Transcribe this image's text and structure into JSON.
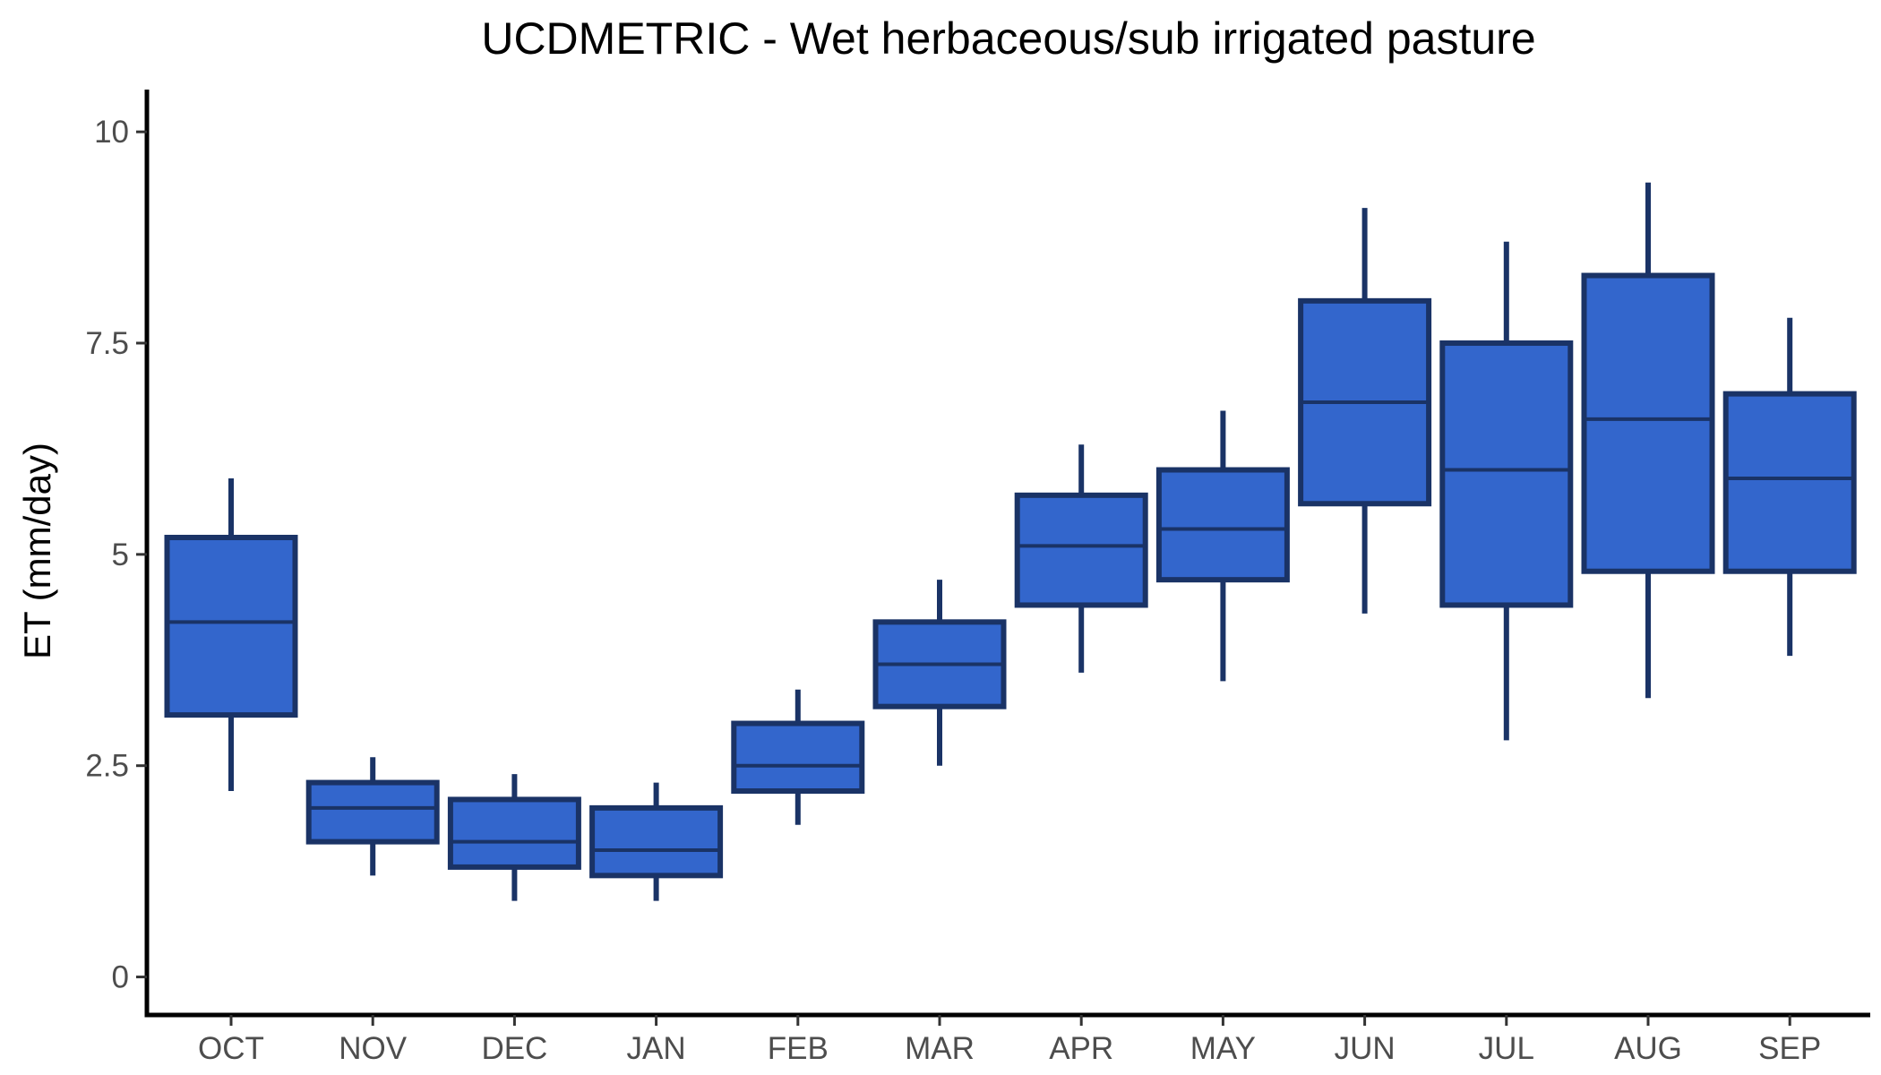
{
  "chart_data": {
    "type": "box",
    "title": "UCDMETRIC - Wet herbaceous/sub irrigated pasture",
    "xlabel": "",
    "ylabel": "ET (mm/day)",
    "ylim": [
      -0.45,
      10.5
    ],
    "y_ticks": [
      {
        "value": 0,
        "label": "0"
      },
      {
        "value": 2.5,
        "label": "2.5"
      },
      {
        "value": 5,
        "label": "5"
      },
      {
        "value": 7.5,
        "label": "7.5"
      },
      {
        "value": 10,
        "label": "10"
      }
    ],
    "grid": false,
    "legend": "none",
    "fill_color": "#3366cc",
    "stroke_color": "#1a3366",
    "categories": [
      "OCT",
      "NOV",
      "DEC",
      "JAN",
      "FEB",
      "MAR",
      "APR",
      "MAY",
      "JUN",
      "JUL",
      "AUG",
      "SEP"
    ],
    "boxes": [
      {
        "category": "OCT",
        "whisker_low": 2.2,
        "q1": 3.1,
        "median": 4.2,
        "q3": 5.2,
        "whisker_high": 5.9
      },
      {
        "category": "NOV",
        "whisker_low": 1.2,
        "q1": 1.6,
        "median": 2.0,
        "q3": 2.3,
        "whisker_high": 2.6
      },
      {
        "category": "DEC",
        "whisker_low": 0.9,
        "q1": 1.3,
        "median": 1.6,
        "q3": 2.1,
        "whisker_high": 2.4
      },
      {
        "category": "JAN",
        "whisker_low": 0.9,
        "q1": 1.2,
        "median": 1.5,
        "q3": 2.0,
        "whisker_high": 2.3
      },
      {
        "category": "FEB",
        "whisker_low": 1.8,
        "q1": 2.2,
        "median": 2.5,
        "q3": 3.0,
        "whisker_high": 3.4
      },
      {
        "category": "MAR",
        "whisker_low": 2.5,
        "q1": 3.2,
        "median": 3.7,
        "q3": 4.2,
        "whisker_high": 4.7
      },
      {
        "category": "APR",
        "whisker_low": 3.6,
        "q1": 4.4,
        "median": 5.1,
        "q3": 5.7,
        "whisker_high": 6.3
      },
      {
        "category": "MAY",
        "whisker_low": 3.5,
        "q1": 4.7,
        "median": 5.3,
        "q3": 6.0,
        "whisker_high": 6.7
      },
      {
        "category": "JUN",
        "whisker_low": 4.3,
        "q1": 5.6,
        "median": 6.8,
        "q3": 8.0,
        "whisker_high": 9.1
      },
      {
        "category": "JUL",
        "whisker_low": 2.8,
        "q1": 4.4,
        "median": 6.0,
        "q3": 7.5,
        "whisker_high": 8.7
      },
      {
        "category": "AUG",
        "whisker_low": 3.3,
        "q1": 4.8,
        "median": 6.6,
        "q3": 8.3,
        "whisker_high": 9.4
      },
      {
        "category": "SEP",
        "whisker_low": 3.8,
        "q1": 4.8,
        "median": 5.9,
        "q3": 6.9,
        "whisker_high": 7.8
      }
    ]
  }
}
